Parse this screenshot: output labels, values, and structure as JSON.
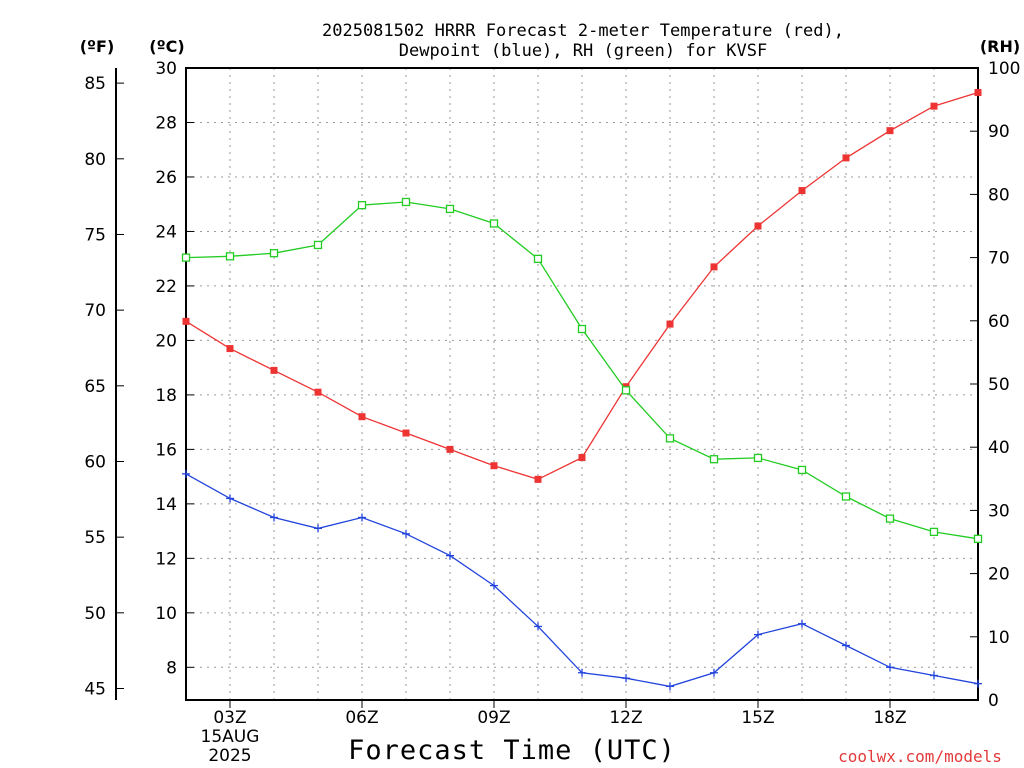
{
  "chart_data": {
    "type": "line",
    "title_line1": "2025081502 HRRR Forecast 2-meter Temperature (red),",
    "title_line2": "Dewpoint (blue), RH (green) for KVSF",
    "xlabel": "Forecast Time (UTC)",
    "credit": "coolwx.com/models",
    "left_unit_f": "(ºF)",
    "left_unit_c": "(ºC)",
    "right_unit": "(RH)",
    "x_hours": [
      2,
      3,
      4,
      5,
      6,
      7,
      8,
      9,
      10,
      11,
      12,
      13,
      14,
      15,
      16,
      17,
      18,
      19,
      20
    ],
    "x_range": [
      2,
      20
    ],
    "x_ticks": [
      {
        "hour": 3,
        "label": "03Z",
        "sub1": "15AUG",
        "sub2": "2025"
      },
      {
        "hour": 6,
        "label": "06Z"
      },
      {
        "hour": 9,
        "label": "09Z"
      },
      {
        "hour": 12,
        "label": "12Z"
      },
      {
        "hour": 15,
        "label": "15Z"
      },
      {
        "hour": 18,
        "label": "18Z"
      }
    ],
    "ylim_c": [
      6.8,
      30
    ],
    "ylim_rh": [
      0,
      100
    ],
    "ylim_f": [
      44.24,
      86
    ],
    "yticks_c": [
      "8",
      "10",
      "12",
      "14",
      "16",
      "18",
      "20",
      "22",
      "24",
      "26",
      "28",
      "30"
    ],
    "yticks_f": [
      "45",
      "50",
      "55",
      "60",
      "65",
      "70",
      "75",
      "80",
      "85"
    ],
    "yticks_rh": [
      "0",
      "10",
      "20",
      "30",
      "40",
      "50",
      "60",
      "70",
      "80",
      "90",
      "100"
    ],
    "grid": true,
    "series": [
      {
        "name": "Temperature",
        "axis": "c",
        "color": "#ee3333",
        "marker": "filled-square",
        "values": [
          20.7,
          19.7,
          18.9,
          18.1,
          17.2,
          16.6,
          16.0,
          15.4,
          14.9,
          15.7,
          18.3,
          20.6,
          22.7,
          24.2,
          25.5,
          26.7,
          27.7,
          28.6,
          29.1
        ]
      },
      {
        "name": "Dewpoint",
        "axis": "c",
        "color": "#2244dd",
        "marker": "plus",
        "values": [
          15.1,
          14.2,
          13.5,
          13.1,
          13.5,
          12.9,
          12.1,
          11.0,
          9.5,
          7.8,
          7.6,
          7.3,
          7.8,
          9.2,
          9.6,
          8.8,
          8.0,
          7.7,
          7.4
        ]
      },
      {
        "name": "RH",
        "axis": "rh",
        "color": "#22cc22",
        "marker": "open-square",
        "values": [
          70,
          70.2,
          70.7,
          72,
          78.3,
          78.8,
          77.7,
          75.4,
          69.8,
          58.7,
          49,
          41.4,
          38.1,
          38.3,
          36.4,
          32.2,
          28.7,
          26.6,
          25.5
        ]
      }
    ]
  }
}
